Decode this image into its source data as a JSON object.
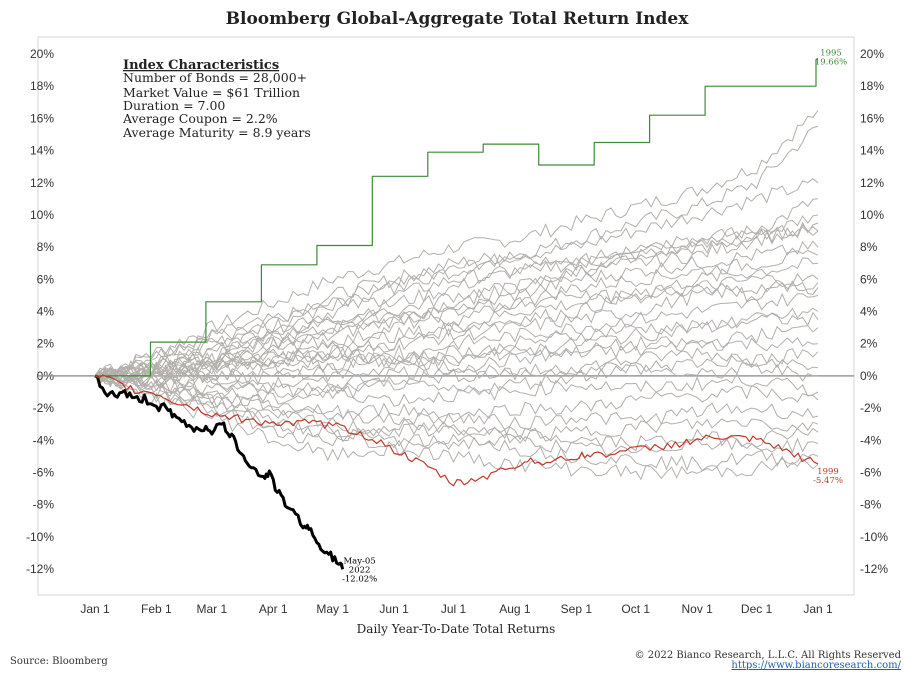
{
  "chart_data": {
    "type": "line",
    "title": "Bloomberg Global-Aggregate Total Return Index",
    "xlabel": "Daily Year-To-Date Total Returns",
    "x_ticks": [
      "Jan 1",
      "Feb 1",
      "Mar 1",
      "Apr 1",
      "May 1",
      "Jun 1",
      "Jul 1",
      "Aug 1",
      "Sep 1",
      "Oct 1",
      "Nov 1",
      "Dec 1",
      "Jan 1"
    ],
    "x_tick_days": [
      0,
      31,
      59,
      90,
      120,
      151,
      181,
      212,
      243,
      273,
      304,
      334,
      365
    ],
    "xlim_days": [
      0,
      365
    ],
    "ylim": [
      -14,
      21
    ],
    "y_ticks": [
      -12,
      -10,
      -8,
      -6,
      -4,
      -2,
      0,
      2,
      4,
      6,
      8,
      10,
      12,
      14,
      16,
      18,
      20
    ],
    "y_tick_labels": [
      "-12%",
      "-10%",
      "-8%",
      "-6%",
      "-4%",
      "-2%",
      "0%",
      "2%",
      "4%",
      "6%",
      "8%",
      "10%",
      "12%",
      "14%",
      "16%",
      "18%",
      "20%"
    ],
    "grid": false,
    "zero_line": true,
    "highlight_series": [
      {
        "name": "2022",
        "color": "#000000",
        "x_days": [
          0,
          5,
          10,
          15,
          20,
          25,
          31,
          36,
          40,
          45,
          50,
          55,
          59,
          64,
          68,
          72,
          76,
          80,
          85,
          88,
          92,
          96,
          100,
          105,
          108,
          112,
          116,
          120,
          124,
          125
        ],
        "values": [
          0,
          -1.0,
          -1.2,
          -1.0,
          -1.5,
          -1.4,
          -1.9,
          -2.0,
          -2.6,
          -2.9,
          -3.3,
          -3.2,
          -3.4,
          -3.0,
          -3.6,
          -4.4,
          -5.1,
          -5.8,
          -6.3,
          -6.0,
          -7.2,
          -7.9,
          -8.5,
          -9.2,
          -9.5,
          -10.3,
          -10.8,
          -11.3,
          -11.8,
          -12.02
        ],
        "label_lines": [
          "May-05",
          "2022",
          "-12.02%"
        ]
      },
      {
        "name": "1995",
        "color": "#3d8b37",
        "x_days": [
          0,
          28,
          28,
          56,
          56,
          84,
          84,
          112,
          112,
          140,
          140,
          168,
          168,
          196,
          196,
          224,
          224,
          252,
          252,
          280,
          280,
          308,
          308,
          336,
          336,
          364,
          364,
          365
        ],
        "values": [
          0,
          0,
          2.1,
          2.1,
          4.6,
          4.6,
          6.9,
          6.9,
          8.1,
          8.1,
          12.4,
          12.4,
          13.9,
          13.9,
          14.4,
          14.4,
          13.1,
          13.1,
          14.5,
          14.5,
          16.2,
          16.2,
          18.0,
          18.0,
          18.0,
          18.0,
          19.66,
          19.66
        ],
        "label_lines": [
          "1995",
          "19.66%"
        ]
      },
      {
        "name": "1999",
        "color": "#c0392b",
        "x_days": [
          0,
          10,
          20,
          31,
          40,
          50,
          59,
          70,
          80,
          90,
          100,
          110,
          120,
          130,
          140,
          151,
          160,
          170,
          181,
          190,
          200,
          212,
          220,
          230,
          243,
          250,
          260,
          273,
          285,
          295,
          304,
          315,
          325,
          334,
          345,
          355,
          365
        ],
        "values": [
          0,
          -0.4,
          -0.9,
          -1.1,
          -1.6,
          -2.0,
          -2.4,
          -2.6,
          -2.8,
          -2.9,
          -3.0,
          -2.9,
          -3.1,
          -3.4,
          -3.9,
          -4.6,
          -5.2,
          -5.8,
          -6.7,
          -6.5,
          -6.1,
          -5.6,
          -5.2,
          -5.4,
          -5.0,
          -4.9,
          -4.8,
          -4.6,
          -4.4,
          -4.2,
          -4.0,
          -3.8,
          -3.9,
          -4.0,
          -4.5,
          -5.0,
          -5.47
        ],
        "label_lines": [
          "1999",
          "-5.47%"
        ]
      }
    ],
    "background_series": [
      {
        "values": [
          0,
          1.5,
          3.0,
          4.5,
          6.0,
          7.0,
          8.0,
          8.5,
          9.5,
          10.5,
          11.5,
          13.0,
          16.5
        ]
      },
      {
        "values": [
          0,
          1.0,
          2.5,
          3.5,
          4.5,
          6.0,
          7.0,
          7.5,
          8.5,
          9.5,
          10.5,
          12.0,
          15.5
        ]
      },
      {
        "values": [
          0,
          1.2,
          2.0,
          3.5,
          5.0,
          6.0,
          6.5,
          7.5,
          8.0,
          9.0,
          10.0,
          11.0,
          12.0
        ]
      },
      {
        "values": [
          0,
          0.8,
          1.5,
          3.0,
          4.0,
          5.0,
          6.0,
          6.5,
          7.0,
          8.0,
          8.5,
          9.0,
          11.0
        ]
      },
      {
        "values": [
          0,
          0.5,
          1.2,
          2.5,
          3.5,
          4.5,
          5.5,
          6.5,
          7.0,
          7.5,
          8.0,
          8.5,
          9.5
        ]
      },
      {
        "values": [
          0,
          0.6,
          1.0,
          2.0,
          3.0,
          4.0,
          5.0,
          5.5,
          6.5,
          7.0,
          7.5,
          8.5,
          9.0
        ]
      },
      {
        "values": [
          0,
          0.4,
          1.5,
          2.5,
          2.0,
          3.0,
          4.0,
          5.0,
          6.0,
          6.5,
          7.0,
          7.5,
          8.0
        ]
      },
      {
        "values": [
          0,
          0.3,
          0.8,
          1.5,
          2.5,
          3.5,
          4.0,
          4.5,
          5.5,
          6.0,
          6.5,
          7.0,
          7.5
        ]
      },
      {
        "values": [
          0,
          0.5,
          1.0,
          1.0,
          2.0,
          2.5,
          3.0,
          4.0,
          4.5,
          5.0,
          6.0,
          6.5,
          7.0
        ]
      },
      {
        "values": [
          0,
          0.2,
          0.5,
          1.0,
          1.5,
          2.0,
          3.0,
          3.5,
          4.0,
          5.0,
          5.5,
          6.0,
          6.0
        ]
      },
      {
        "values": [
          0,
          -0.3,
          0.5,
          1.5,
          1.0,
          2.0,
          2.5,
          3.0,
          3.5,
          4.0,
          5.0,
          5.5,
          5.5
        ]
      },
      {
        "values": [
          0,
          0.3,
          1.0,
          0.5,
          1.5,
          1.0,
          2.0,
          2.5,
          3.0,
          3.5,
          4.0,
          4.5,
          5.0
        ]
      },
      {
        "values": [
          0,
          0.5,
          0.8,
          1.5,
          0.5,
          1.5,
          1.0,
          2.0,
          2.5,
          3.0,
          3.0,
          3.5,
          4.0
        ]
      },
      {
        "values": [
          0,
          -0.2,
          0.2,
          0.8,
          1.5,
          0.8,
          1.5,
          1.5,
          2.0,
          2.5,
          3.0,
          3.5,
          3.5
        ]
      },
      {
        "values": [
          0,
          0.2,
          -0.2,
          0.5,
          0.0,
          0.5,
          1.0,
          1.5,
          1.5,
          2.0,
          2.0,
          2.5,
          3.0
        ]
      },
      {
        "values": [
          0,
          -0.5,
          -0.8,
          0.0,
          0.5,
          1.0,
          0.5,
          1.0,
          1.5,
          1.5,
          2.0,
          2.0,
          2.0
        ]
      },
      {
        "values": [
          0,
          0.4,
          0.2,
          -0.5,
          -0.5,
          0.2,
          0.5,
          0.0,
          0.5,
          1.0,
          1.5,
          1.0,
          1.5
        ]
      },
      {
        "values": [
          0,
          -0.3,
          -0.5,
          -1.0,
          -0.8,
          -0.2,
          0.0,
          0.2,
          0.5,
          0.5,
          0.8,
          1.0,
          0.5
        ]
      },
      {
        "values": [
          0,
          0.1,
          -0.2,
          -0.8,
          -1.2,
          -0.5,
          -1.0,
          -0.5,
          0.0,
          0.5,
          0.0,
          0.5,
          0.0
        ]
      },
      {
        "values": [
          0,
          -0.6,
          -1.0,
          -1.5,
          -1.0,
          -1.5,
          -1.2,
          -1.0,
          -0.5,
          -0.8,
          -0.5,
          -0.2,
          -1.0
        ]
      },
      {
        "values": [
          0,
          -0.8,
          -1.5,
          -2.0,
          -2.5,
          -2.0,
          -2.5,
          -2.0,
          -2.0,
          -1.5,
          -1.2,
          -1.0,
          -1.5
        ]
      },
      {
        "values": [
          0,
          -0.5,
          -1.2,
          -1.8,
          -2.2,
          -2.8,
          -2.5,
          -3.0,
          -2.5,
          -2.8,
          -2.2,
          -2.0,
          -2.5
        ]
      },
      {
        "values": [
          0,
          -1.0,
          -1.8,
          -2.5,
          -3.0,
          -3.5,
          -3.2,
          -3.8,
          -3.5,
          -3.2,
          -3.0,
          -2.8,
          -3.5
        ]
      },
      {
        "values": [
          0,
          -1.2,
          -2.0,
          -3.0,
          -3.5,
          -4.0,
          -4.2,
          -4.0,
          -4.5,
          -4.8,
          -4.0,
          -4.5,
          -4.2
        ]
      },
      {
        "values": [
          0,
          -1.5,
          -2.5,
          -4.0,
          -5.0,
          -4.5,
          -4.0,
          -3.5,
          -4.0,
          -4.2,
          -3.8,
          -4.0,
          -3.0
        ]
      },
      {
        "values": [
          0,
          -0.8,
          -2.0,
          -3.5,
          -4.0,
          -3.0,
          -3.5,
          -4.5,
          -5.0,
          -5.2,
          -5.5,
          -5.0,
          -5.5
        ]
      },
      {
        "values": [
          0,
          -0.4,
          -1.5,
          -2.8,
          -3.5,
          -4.5,
          -5.0,
          -5.5,
          -5.8,
          -6.0,
          -6.0,
          -5.8,
          -5.0
        ]
      },
      {
        "values": [
          0,
          0.8,
          2.0,
          2.5,
          3.5,
          4.0,
          3.5,
          4.5,
          5.0,
          4.8,
          5.5,
          5.0,
          5.8
        ]
      },
      {
        "values": [
          0,
          1.2,
          2.5,
          3.0,
          4.5,
          5.5,
          6.5,
          7.5,
          7.0,
          8.0,
          8.5,
          9.0,
          9.0
        ]
      },
      {
        "values": [
          0,
          -0.2,
          0.8,
          2.0,
          3.0,
          3.5,
          4.5,
          5.5,
          6.5,
          7.5,
          8.0,
          8.5,
          10.0
        ]
      }
    ],
    "annotation_box": {
      "title": "Index Characteristics",
      "lines": [
        "Number of Bonds = 28,000+",
        "Market Value = $61 Trillion",
        "Duration = 7.00",
        "Average Coupon = 2.2%",
        "Average Maturity = 8.9 years"
      ]
    },
    "colors": {
      "background_series": "#b3afab",
      "zero_line": "#999999",
      "axis": "#cccccc"
    }
  },
  "footer": {
    "source": "Source: Bloomberg",
    "copyright": "© 2022 Bianco Research, L.L.C. All Rights Reserved",
    "url": "https://www.biancoresearch.com/"
  }
}
